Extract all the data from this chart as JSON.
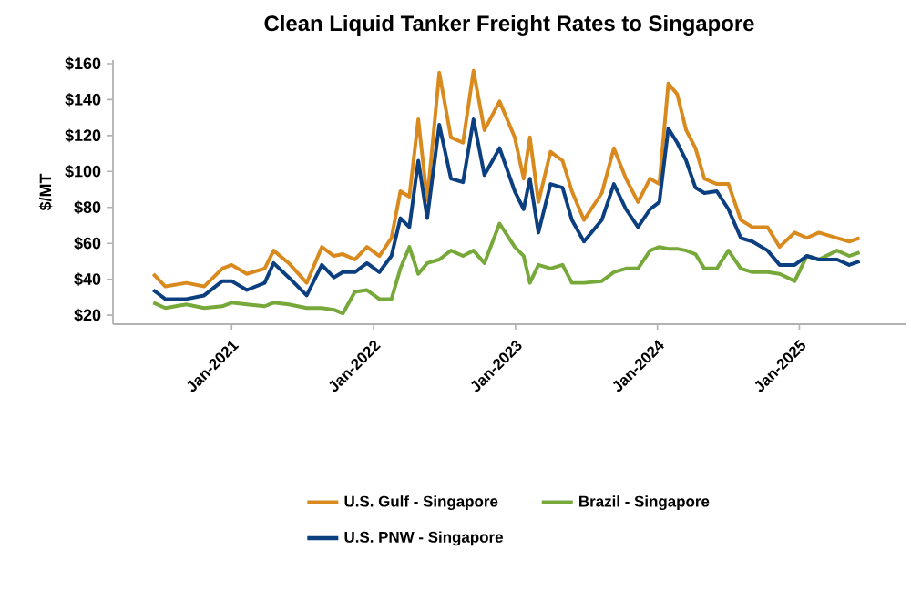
{
  "chart_data": {
    "type": "line",
    "title": "Clean Liquid Tanker Freight Rates to Singapore",
    "ylabel": "$/MT",
    "x": [
      "2020-06-13",
      "2020-07-14",
      "2020-09-06",
      "2020-10-22",
      "2020-12-08",
      "2021-01-01",
      "2021-02-09",
      "2021-03-27",
      "2021-04-19",
      "2021-05-28",
      "2021-07-13",
      "2021-08-21",
      "2021-09-21",
      "2021-10-14",
      "2021-11-14",
      "2021-12-15",
      "2022-01-16",
      "2022-02-16",
      "2022-03-11",
      "2022-04-03",
      "2022-04-26",
      "2022-05-19",
      "2022-06-19",
      "2022-07-19",
      "2022-08-19",
      "2022-09-15",
      "2022-10-13",
      "2022-11-21",
      "2022-12-30",
      "2023-01-22",
      "2023-02-07",
      "2023-03-01",
      "2023-04-01",
      "2023-05-02",
      "2023-05-26",
      "2023-06-26",
      "2023-08-11",
      "2023-09-11",
      "2023-10-12",
      "2023-11-12",
      "2023-12-13",
      "2024-01-06",
      "2024-01-29",
      "2024-02-21",
      "2024-03-15",
      "2024-04-08",
      "2024-05-01",
      "2024-06-02",
      "2024-07-02",
      "2024-08-03",
      "2024-09-02",
      "2024-10-11",
      "2024-11-11",
      "2024-12-20",
      "2025-01-20",
      "2025-02-20",
      "2025-04-08",
      "2025-05-09",
      "2025-06-05"
    ],
    "series": [
      {
        "name": "U.S. Gulf - Singapore",
        "color": "#d98a1e",
        "values": [
          43,
          36,
          38,
          36,
          46,
          48,
          43,
          46,
          56,
          49,
          38,
          58,
          53,
          54,
          51,
          58,
          53,
          63,
          89,
          86,
          129,
          84,
          155,
          119,
          116,
          156,
          123,
          139,
          119,
          96,
          119,
          83,
          111,
          106,
          89,
          73,
          88,
          113,
          96,
          83,
          96,
          93,
          149,
          143,
          123,
          113,
          96,
          93,
          93,
          73,
          69,
          69,
          58,
          66,
          63,
          66,
          63,
          61,
          63
        ]
      },
      {
        "name": "Brazil - Singapore",
        "color": "#76a83a",
        "values": [
          27,
          24,
          26,
          24,
          25,
          27,
          26,
          25,
          27,
          26,
          24,
          24,
          23,
          21,
          33,
          34,
          29,
          29,
          46,
          58,
          43,
          49,
          51,
          56,
          53,
          56,
          49,
          71,
          58,
          53,
          38,
          48,
          46,
          48,
          38,
          38,
          39,
          44,
          46,
          46,
          56,
          58,
          57,
          57,
          56,
          54,
          46,
          46,
          56,
          46,
          44,
          44,
          43,
          39,
          53,
          51,
          56,
          53,
          55
        ]
      },
      {
        "name": "U.S. PNW - Singapore",
        "color": "#0b3f7f",
        "values": [
          34,
          29,
          29,
          31,
          39,
          39,
          34,
          38,
          49,
          41,
          31,
          48,
          41,
          44,
          44,
          49,
          44,
          53,
          74,
          69,
          106,
          74,
          126,
          96,
          94,
          129,
          98,
          113,
          89,
          79,
          96,
          66,
          93,
          91,
          73,
          61,
          73,
          93,
          79,
          69,
          79,
          83,
          124,
          116,
          106,
          91,
          88,
          89,
          79,
          63,
          61,
          56,
          48,
          48,
          53,
          51,
          51,
          48,
          50
        ]
      }
    ],
    "xlim": [
      "2020-03-01",
      "2025-10-01"
    ],
    "xticks": [
      {
        "value": "2021-01-01",
        "label": "Jan-2021"
      },
      {
        "value": "2022-01-01",
        "label": "Jan-2022"
      },
      {
        "value": "2023-01-01",
        "label": "Jan-2023"
      },
      {
        "value": "2024-01-01",
        "label": "Jan-2024"
      },
      {
        "value": "2025-01-01",
        "label": "Jan-2025"
      }
    ],
    "ylim": [
      15,
      162
    ],
    "yticks": [
      {
        "value": 20,
        "label": "$20"
      },
      {
        "value": 40,
        "label": "$40"
      },
      {
        "value": 60,
        "label": "$60"
      },
      {
        "value": 80,
        "label": "$80"
      },
      {
        "value": 100,
        "label": "$100"
      },
      {
        "value": 120,
        "label": "$120"
      },
      {
        "value": 140,
        "label": "$140"
      },
      {
        "value": 160,
        "label": "$160"
      }
    ],
    "legend": "bottom",
    "marker": "none",
    "line_style": "solid"
  }
}
